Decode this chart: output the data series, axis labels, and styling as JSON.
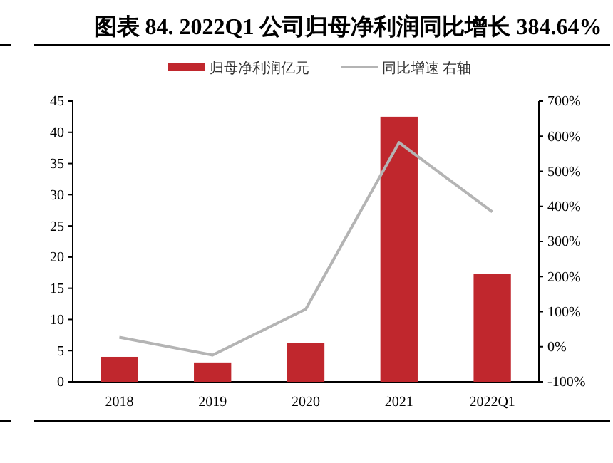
{
  "chart_data": {
    "type": "bar",
    "title": "图表 84. 2022Q1 公司归母净利润同比增长 384.64%",
    "categories": [
      "2018",
      "2019",
      "2020",
      "2021",
      "2022Q1"
    ],
    "series": [
      {
        "name": "归母净利润亿元",
        "color": "#c0272d",
        "values": [
          4.0,
          3.1,
          6.2,
          42.5,
          17.3
        ]
      },
      {
        "name": "同比增速 右轴",
        "type": "line",
        "axis": "y2",
        "color": "#b4b4b4",
        "values": [
          27,
          -24,
          107,
          582,
          384.64
        ]
      }
    ],
    "ylim": [
      0,
      45
    ],
    "yticks": [
      0,
      5,
      10,
      15,
      20,
      25,
      30,
      35,
      40,
      45
    ],
    "y2lim": [
      -100,
      700
    ],
    "y2ticks": [
      {
        "value": -100,
        "label": "-100%"
      },
      {
        "value": 0,
        "label": "0%"
      },
      {
        "value": 100,
        "label": "100%"
      },
      {
        "value": 200,
        "label": "200%"
      },
      {
        "value": 300,
        "label": "300%"
      },
      {
        "value": 400,
        "label": "400%"
      },
      {
        "value": 500,
        "label": "500%"
      },
      {
        "value": 600,
        "label": "600%"
      },
      {
        "value": 700,
        "label": "700%"
      }
    ],
    "legend": "top",
    "grid": false,
    "marker": "none",
    "line_style": "solid"
  }
}
